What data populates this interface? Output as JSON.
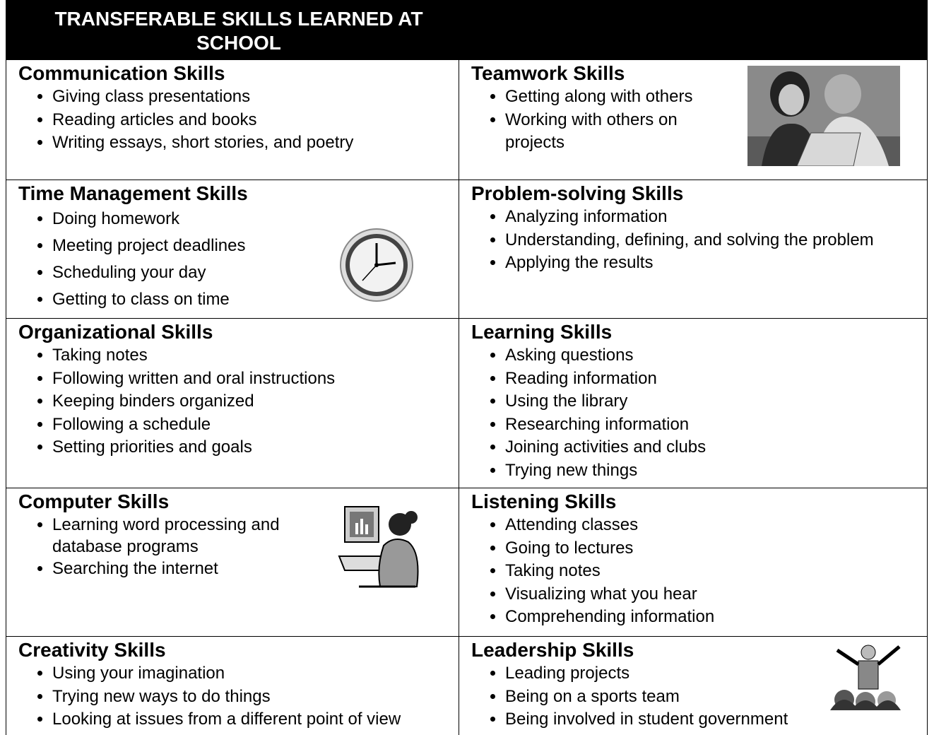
{
  "title": "TRANSFERABLE SKILLS LEARNED AT SCHOOL",
  "rows": [
    [
      {
        "heading": "Communication Skills",
        "items": [
          "Giving class presentations",
          "Reading articles and books",
          "Writing essays, short stories, and poetry"
        ]
      },
      {
        "heading": "Teamwork Skills",
        "items": [
          "Getting along with others",
          "Working with others on projects"
        ]
      }
    ],
    [
      {
        "heading": "Time Management Skills",
        "items": [
          "Doing homework",
          "Meeting project deadlines",
          "Scheduling your day",
          "Getting to class on time"
        ]
      },
      {
        "heading": "Problem-solving Skills",
        "items": [
          "Analyzing information",
          "Understanding, defining, and solving the problem",
          "Applying the results"
        ]
      }
    ],
    [
      {
        "heading": "Organizational Skills",
        "items": [
          "Taking notes",
          "Following written and oral instructions",
          "Keeping binders organized",
          "Following a schedule",
          "Setting priorities and goals"
        ]
      },
      {
        "heading": "Learning Skills",
        "items": [
          "Asking questions",
          "Reading information",
          "Using the library",
          "Researching information",
          "Joining activities and clubs",
          "Trying new things"
        ]
      }
    ],
    [
      {
        "heading": "Computer Skills",
        "items": [
          "Learning word processing and database programs",
          "Searching the internet"
        ]
      },
      {
        "heading": "Listening Skills",
        "items": [
          "Attending classes",
          "Going to lectures",
          "Taking notes",
          "Visualizing what you hear",
          "Comprehending information"
        ]
      }
    ],
    [
      {
        "heading": "Creativity Skills",
        "items": [
          "Using your imagination",
          "Trying new ways to do things",
          "Looking at issues from a different point of view"
        ]
      },
      {
        "heading": "Leadership Skills",
        "items": [
          "Leading projects",
          "Being on a sports team",
          "Being involved in student government"
        ]
      }
    ]
  ]
}
